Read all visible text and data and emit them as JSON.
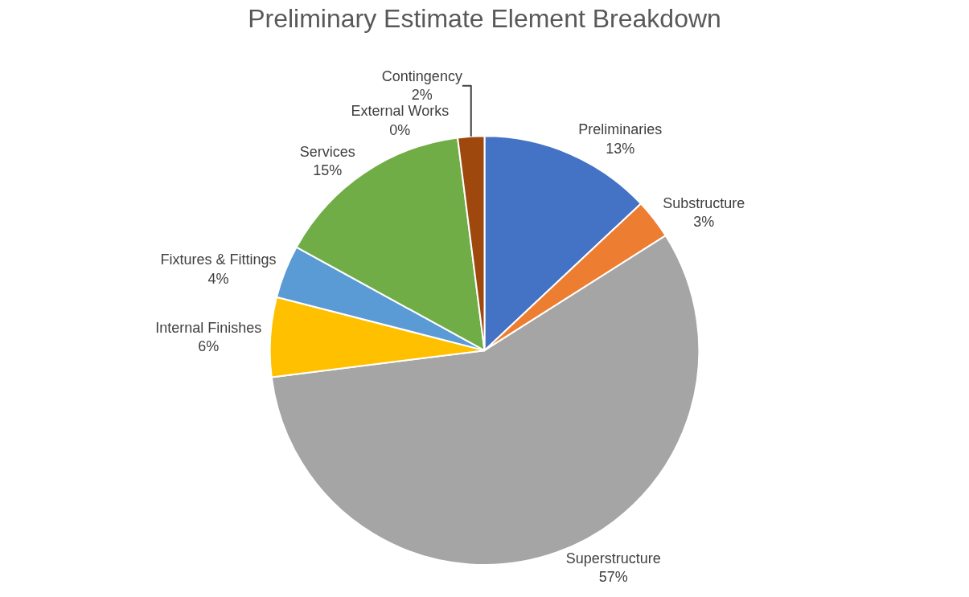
{
  "chart_data": {
    "type": "pie",
    "title": "Preliminary Estimate Element Breakdown",
    "categories": [
      "Preliminaries",
      "Substructure",
      "Superstructure",
      "Internal Finishes",
      "Fixtures & Fittings",
      "Services",
      "External Works",
      "Contingency"
    ],
    "values": [
      13,
      3,
      57,
      6,
      4,
      15,
      0,
      2
    ],
    "value_labels": [
      "13%",
      "3%",
      "57%",
      "6%",
      "4%",
      "15%",
      "0%",
      "2%"
    ],
    "colors": [
      "#4472c4",
      "#ed7d31",
      "#a5a5a5",
      "#ffc000",
      "#5b9bd5",
      "#70ad47",
      "#264478",
      "#9e480e"
    ],
    "legend": false
  }
}
